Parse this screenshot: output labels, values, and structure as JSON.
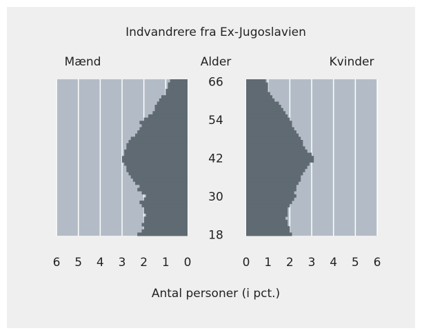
{
  "chart_data": {
    "type": "pyramid",
    "title": "Indvandrere fra Ex-Jugoslavien",
    "ylabel": "Alder",
    "xlabel": "Antal personer (i pct.)",
    "y": [
      18,
      19,
      20,
      21,
      22,
      23,
      24,
      25,
      26,
      27,
      28,
      29,
      30,
      31,
      32,
      33,
      34,
      35,
      36,
      37,
      38,
      39,
      40,
      41,
      42,
      43,
      44,
      45,
      46,
      47,
      48,
      49,
      50,
      51,
      52,
      53,
      54,
      55,
      56,
      57,
      58,
      59,
      60,
      61,
      62,
      63,
      64,
      65,
      66
    ],
    "ylim": [
      17.5,
      66.5
    ],
    "yticks": [
      18,
      30,
      42,
      54,
      66
    ],
    "xlim": [
      0,
      6
    ],
    "xticks": [
      0,
      1,
      2,
      3,
      4,
      5,
      6
    ],
    "grid": true,
    "series": [
      {
        "name": "Mænd",
        "color": "#5f6a72",
        "values": [
          2.3,
          2.1,
          2.0,
          2.1,
          2.0,
          2.0,
          1.9,
          2.0,
          2.0,
          2.1,
          2.2,
          2.0,
          1.9,
          2.1,
          2.3,
          2.2,
          2.4,
          2.5,
          2.6,
          2.7,
          2.8,
          2.8,
          2.9,
          3.0,
          3.0,
          2.9,
          2.9,
          2.8,
          2.8,
          2.7,
          2.6,
          2.4,
          2.3,
          2.2,
          2.1,
          2.2,
          2.0,
          1.8,
          1.6,
          1.5,
          1.5,
          1.4,
          1.3,
          1.2,
          1.0,
          1.0,
          0.9,
          0.9,
          0.8
        ]
      },
      {
        "name": "Kvinder",
        "color": "#5f6a72",
        "values": [
          2.1,
          2.0,
          2.0,
          1.9,
          1.9,
          1.8,
          1.9,
          1.9,
          1.9,
          2.0,
          2.1,
          2.2,
          2.3,
          2.2,
          2.3,
          2.3,
          2.4,
          2.5,
          2.5,
          2.6,
          2.7,
          2.8,
          2.9,
          3.1,
          3.1,
          3.0,
          2.8,
          2.7,
          2.6,
          2.6,
          2.5,
          2.4,
          2.3,
          2.2,
          2.1,
          2.1,
          2.0,
          1.9,
          1.8,
          1.7,
          1.6,
          1.5,
          1.3,
          1.2,
          1.1,
          1.0,
          1.0,
          1.0,
          0.9
        ]
      }
    ],
    "panel_color": "#b3bcc6",
    "grid_color": "#ffffff"
  }
}
